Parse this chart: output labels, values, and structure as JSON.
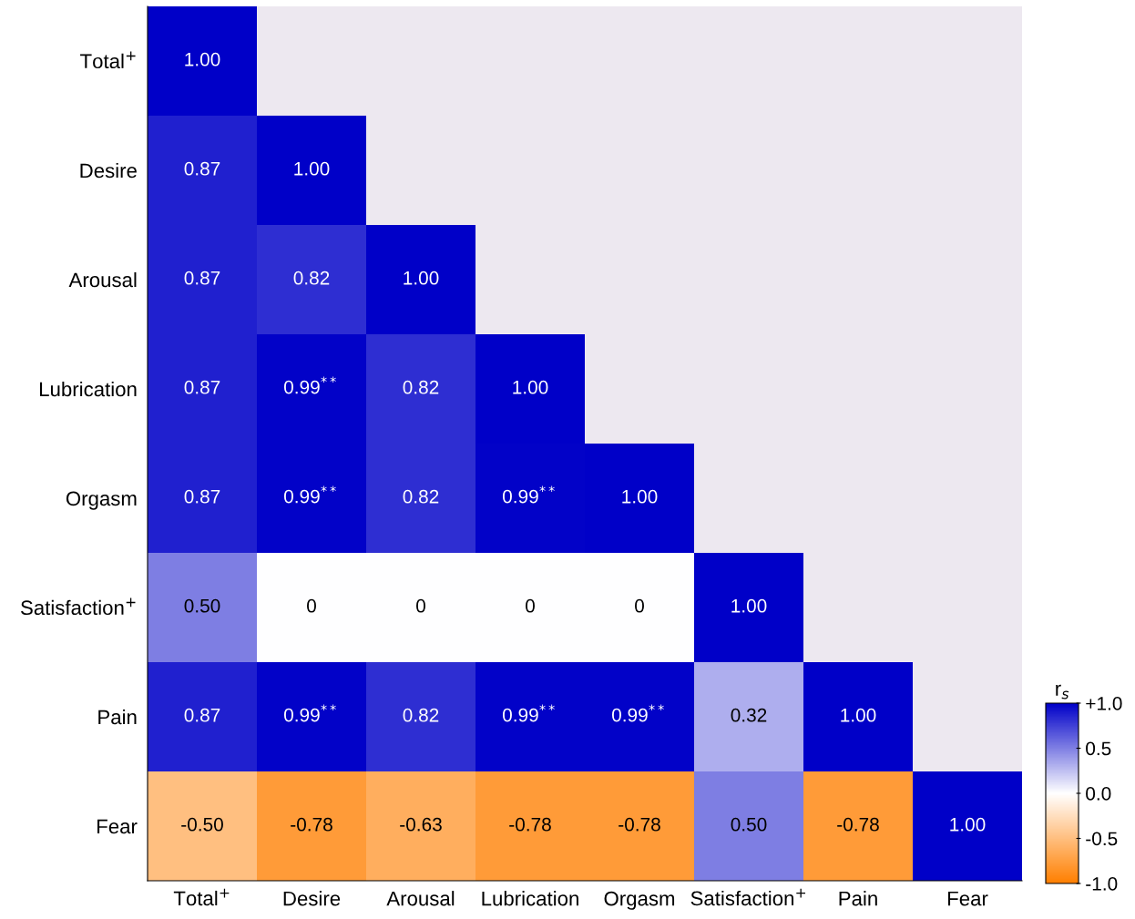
{
  "chart_data": {
    "type": "heatmap",
    "clabel": "r$_{s}$",
    "categories": [
      "Total$^{+}$",
      "Desire",
      "Arousal",
      "Lubrication",
      "Orgasm",
      "Satisfaction$^{+}$",
      "Pain",
      "Fear"
    ],
    "y_categories": [
      "Total$^{+}$",
      "Desire",
      "Arousal",
      "Lubrication",
      "Orgasm",
      "Satisfaction$^{+}$",
      "Pain",
      "Fear"
    ],
    "cells": [
      [
        1.0,
        null,
        null,
        null,
        null,
        null,
        null,
        null
      ],
      [
        0.87,
        1.0,
        null,
        null,
        null,
        null,
        null,
        null
      ],
      [
        0.87,
        0.82,
        1.0,
        null,
        null,
        null,
        null,
        null
      ],
      [
        0.87,
        0.99,
        0.82,
        1.0,
        null,
        null,
        null,
        null
      ],
      [
        0.87,
        0.99,
        0.82,
        0.99,
        1.0,
        null,
        null,
        null
      ],
      [
        0.5,
        0,
        0,
        0,
        0,
        1.0,
        null,
        null
      ],
      [
        0.87,
        0.99,
        0.82,
        0.99,
        0.99,
        0.32,
        1.0,
        null
      ],
      [
        -0.5,
        -0.78,
        -0.63,
        -0.78,
        -0.78,
        0.5,
        -0.78,
        1.0
      ]
    ],
    "cell_labels": [
      [
        "1.00",
        null,
        null,
        null,
        null,
        null,
        null,
        null
      ],
      [
        "0.87",
        "1.00",
        null,
        null,
        null,
        null,
        null,
        null
      ],
      [
        "0.87",
        "0.82",
        "1.00",
        null,
        null,
        null,
        null,
        null
      ],
      [
        "0.87",
        "0.99$^{**}$",
        "0.82",
        "1.00",
        null,
        null,
        null,
        null
      ],
      [
        "0.87",
        "0.99$^{**}$",
        "0.82",
        "0.99$^{**}$",
        "1.00",
        null,
        null,
        null
      ],
      [
        "0.50",
        "0",
        "0",
        "0",
        "0",
        "1.00",
        null,
        null
      ],
      [
        "0.87",
        "0.99$^{**}$",
        "0.82",
        "0.99$^{**}$",
        "0.99$^{**}$",
        "0.32",
        "1.00",
        null
      ],
      [
        "-0.50",
        "-0.78",
        "-0.63",
        "-0.78",
        "-0.78",
        "0.50",
        "-0.78",
        "1.00"
      ]
    ],
    "clim": [
      -1.0,
      1.0
    ],
    "cticks": [
      {
        "value": 1.0,
        "label": "+1.0"
      },
      {
        "value": 0.5,
        "label": "0.5"
      },
      {
        "value": 0.0,
        "label": "0.0"
      },
      {
        "value": -0.5,
        "label": "-0.5"
      },
      {
        "value": -1.0,
        "label": "-1.0"
      }
    ]
  }
}
